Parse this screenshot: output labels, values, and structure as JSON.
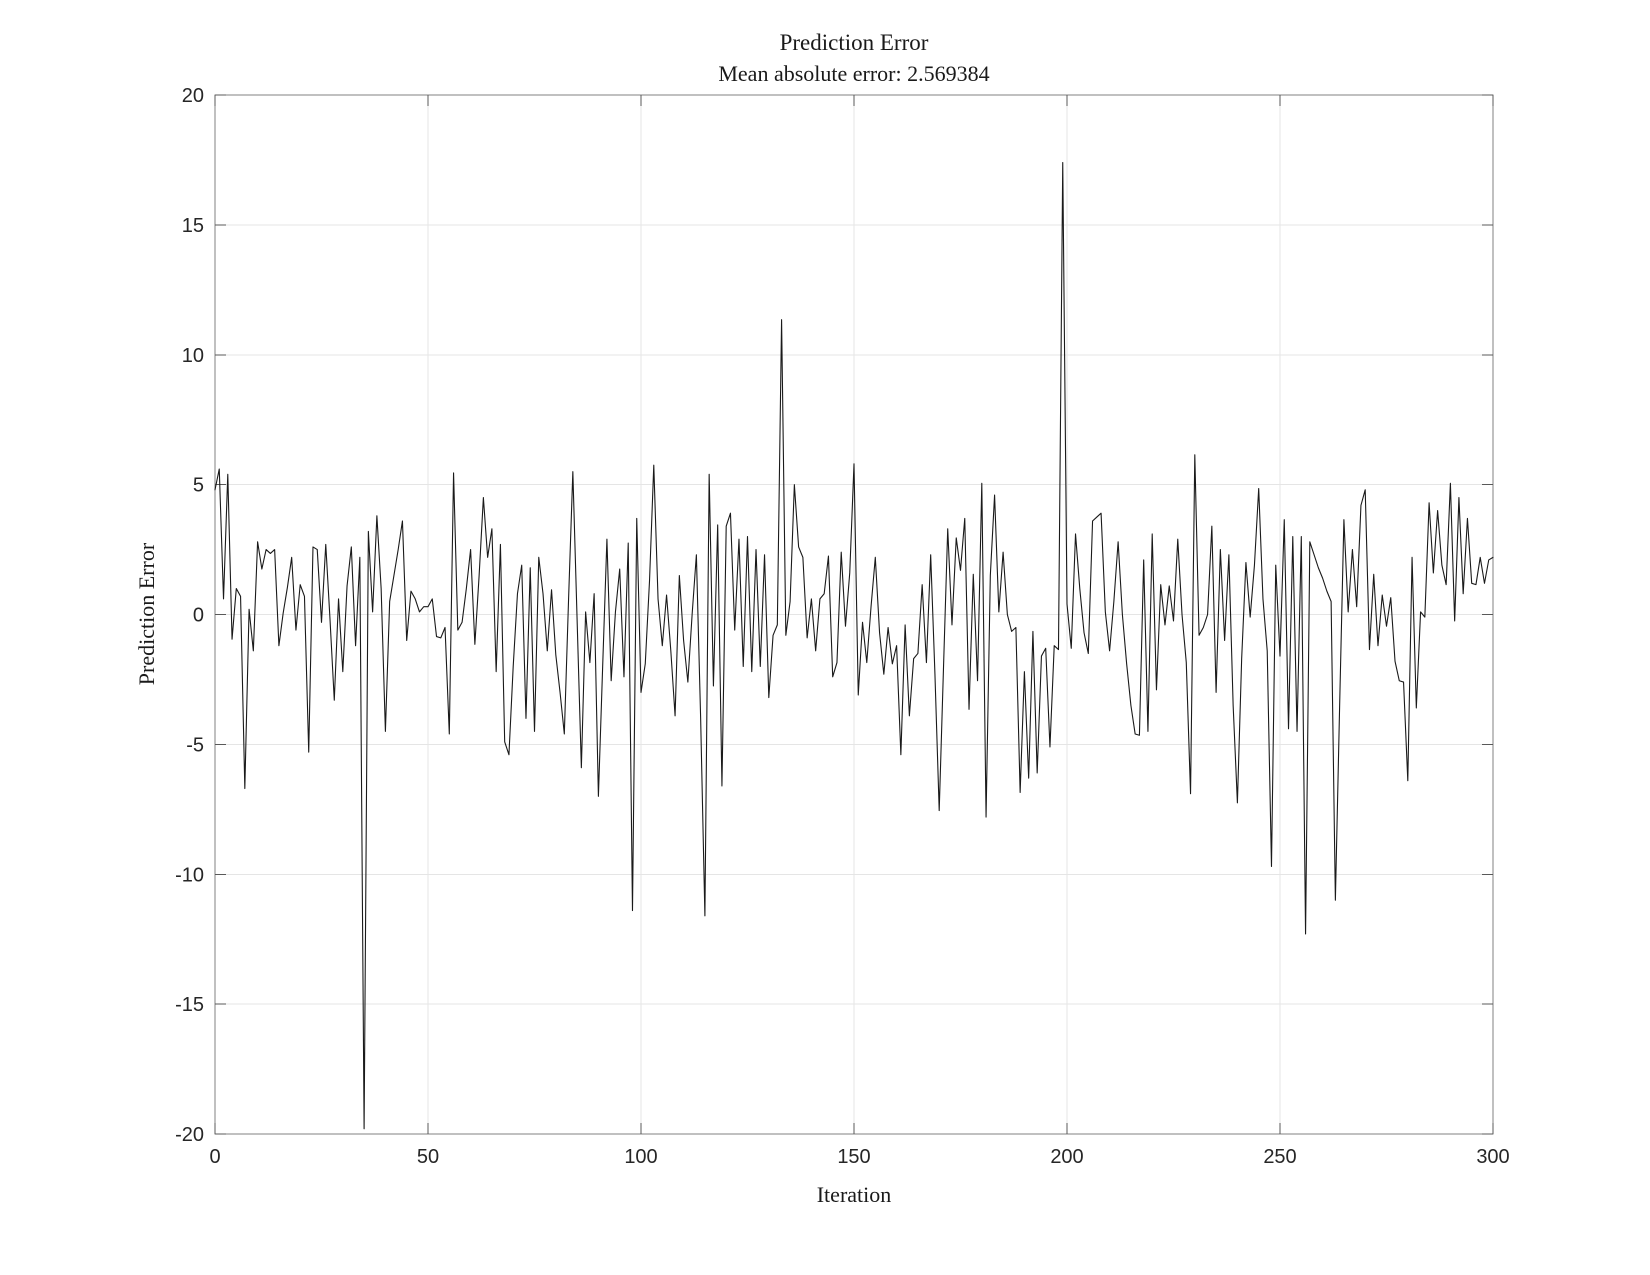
{
  "figure": {
    "title": "Prediction Error",
    "subtitle": "Mean absolute error: 2.569384",
    "xlabel": "Iteration",
    "ylabel": "Prediction Error"
  },
  "colors": {
    "background": "#ffffff",
    "axis_box": "#808080",
    "gridline": "#e5e5e5",
    "tick_mark": "#595959",
    "tick_label": "#262626",
    "text": "#1a1a1a",
    "line": "#1a1a1a"
  },
  "chart_data": {
    "type": "line",
    "title": "Prediction Error",
    "subtitle": "Mean absolute error: 2.569384",
    "xlabel": "Iteration",
    "ylabel": "Prediction Error",
    "mean_absolute_error": 2.569384,
    "xlim": [
      0,
      300
    ],
    "ylim": [
      -20,
      20
    ],
    "xticks": [
      0,
      50,
      100,
      150,
      200,
      250,
      300
    ],
    "yticks": [
      -20,
      -15,
      -10,
      -5,
      0,
      5,
      10,
      15,
      20
    ],
    "grid": true,
    "legend": null,
    "x_description": "iteration index 0..300, one point per iteration (values eyeball-digitized; notable extrema: -19.8 @35, -11.4 @98, -11.6 @115, 11.35 @133, 17.4 @199, 6.15 @230, -9.7 @248, -12.3 @256, -11.0 @263)",
    "values": [
      4.8,
      5.6,
      0.6,
      5.4,
      -0.95,
      1.0,
      0.7,
      -6.7,
      0.2,
      -1.4,
      2.8,
      1.75,
      2.5,
      2.35,
      2.5,
      -1.2,
      0.05,
      1.05,
      2.2,
      -0.6,
      1.15,
      0.7,
      -5.3,
      2.6,
      2.5,
      -0.3,
      2.7,
      -0.2,
      -3.3,
      0.6,
      -2.2,
      1.1,
      2.6,
      -1.2,
      2.2,
      -19.8,
      3.2,
      0.1,
      3.8,
      1.0,
      -4.5,
      0.5,
      1.5,
      2.5,
      3.6,
      -1.0,
      0.9,
      0.6,
      0.1,
      0.3,
      0.3,
      0.6,
      -0.85,
      -0.9,
      -0.5,
      -4.6,
      5.45,
      -0.6,
      -0.3,
      1.0,
      2.5,
      -1.15,
      1.5,
      4.5,
      2.2,
      3.3,
      -2.2,
      2.7,
      -4.9,
      -5.4,
      -2.0,
      0.8,
      1.9,
      -4.0,
      1.8,
      -4.5,
      2.2,
      0.8,
      -1.4,
      0.95,
      -1.55,
      -3.0,
      -4.6,
      0.6,
      5.5,
      -0.2,
      -5.9,
      0.1,
      -1.85,
      0.8,
      -7.0,
      -2.0,
      2.9,
      -2.55,
      0.1,
      1.75,
      -2.4,
      2.75,
      -11.4,
      3.7,
      -3.0,
      -1.9,
      1.3,
      5.75,
      0.6,
      -1.2,
      0.75,
      -1.4,
      -3.9,
      1.5,
      -1.0,
      -2.6,
      0.0,
      2.3,
      -4.0,
      -11.6,
      5.4,
      -2.75,
      3.45,
      -6.6,
      3.4,
      3.9,
      -0.6,
      2.9,
      -2.0,
      3.0,
      -2.2,
      2.5,
      -2.0,
      2.3,
      -3.2,
      -0.8,
      -0.4,
      11.35,
      -0.8,
      0.5,
      5.0,
      2.6,
      2.2,
      -0.9,
      0.6,
      -1.4,
      0.6,
      0.8,
      2.25,
      -2.4,
      -1.85,
      2.4,
      -0.45,
      1.6,
      5.8,
      -3.1,
      -0.3,
      -1.85,
      0.3,
      2.2,
      -0.7,
      -2.3,
      -0.5,
      -1.9,
      -1.2,
      -5.4,
      -0.4,
      -3.9,
      -1.7,
      -1.5,
      1.15,
      -1.85,
      2.3,
      -2.3,
      -7.55,
      -2.1,
      3.3,
      -0.4,
      2.95,
      1.7,
      3.7,
      -3.65,
      1.55,
      -2.55,
      5.05,
      -7.8,
      1.5,
      4.6,
      0.1,
      2.4,
      0.0,
      -0.65,
      -0.5,
      -6.85,
      -2.2,
      -6.3,
      -0.65,
      -6.1,
      -1.6,
      -1.3,
      -5.1,
      -1.2,
      -1.35,
      17.4,
      0.4,
      -1.3,
      3.1,
      1.0,
      -0.7,
      -1.5,
      3.6,
      3.75,
      3.9,
      0.1,
      -1.4,
      0.5,
      2.8,
      0.0,
      -1.9,
      -3.5,
      -4.6,
      -4.65,
      2.1,
      -4.5,
      3.1,
      -2.9,
      1.15,
      -0.4,
      1.1,
      -0.25,
      2.9,
      0.0,
      -1.85,
      -6.9,
      6.15,
      -0.8,
      -0.5,
      0.0,
      3.4,
      -3.0,
      2.5,
      -1.0,
      2.3,
      -3.5,
      -7.25,
      -1.7,
      2.0,
      -0.1,
      1.9,
      4.85,
      0.6,
      -1.4,
      -9.7,
      1.9,
      -1.6,
      3.65,
      -4.4,
      3.0,
      -4.5,
      3.0,
      -12.3,
      2.8,
      2.3,
      1.8,
      1.4,
      0.9,
      0.5,
      -11.0,
      -3.5,
      3.65,
      0.1,
      2.5,
      0.3,
      4.2,
      4.8,
      -1.35,
      1.55,
      -1.2,
      0.75,
      -0.45,
      0.65,
      -1.8,
      -2.55,
      -2.6,
      -6.4,
      2.2,
      -3.6,
      0.1,
      -0.1,
      4.3,
      1.6,
      4.0,
      1.9,
      1.15,
      5.05,
      -0.25,
      4.5,
      0.8,
      3.7,
      1.2,
      1.15,
      2.2,
      1.2,
      2.1,
      2.2
    ]
  }
}
